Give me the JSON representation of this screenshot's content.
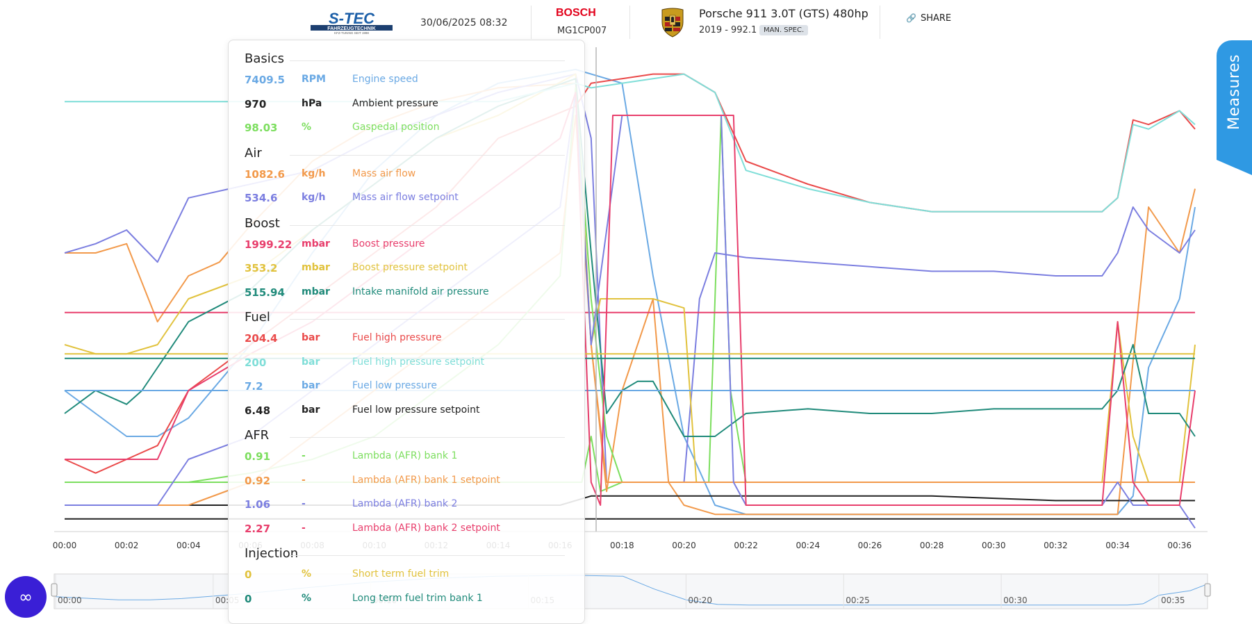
{
  "header": {
    "date_time": "30/06/2025 08:32",
    "ecu_brand": "BOSCH",
    "ecu_model": "MG1CP007",
    "vehicle_name": "Porsche 911 3.0T (GTS) 480hp",
    "vehicle_detail": "2019 - 992.1",
    "badge": "MAN. SPEC.",
    "share_label": "SHARE"
  },
  "logo": {
    "text": "S-TEC",
    "sub": "FAHRZEUGTECHNIK",
    "tagline": "KFZ-TUNING SEIT 1998"
  },
  "sidebar_tab": {
    "label": "Measures"
  },
  "fab_icon": "infinity-chat-icon",
  "colors": {
    "accent": "#2f99e3",
    "fab": "#3a1fd6",
    "bosch": "#e2001a"
  },
  "panel": {
    "sections": [
      {
        "title": "Basics",
        "items": [
          {
            "value": "7409.5",
            "unit": "RPM",
            "name": "Engine speed",
            "color": "#6aa9e4"
          },
          {
            "value": "970",
            "unit": "hPa",
            "name": "Ambient pressure",
            "color": "#222222"
          },
          {
            "value": "98.03",
            "unit": "%",
            "name": "Gaspedal position",
            "color": "#7cde5e"
          }
        ]
      },
      {
        "title": "Air",
        "items": [
          {
            "value": "1082.6",
            "unit": "kg/h",
            "name": "Mass air flow",
            "color": "#f2994a"
          },
          {
            "value": "534.6",
            "unit": "kg/h",
            "name": "Mass air flow setpoint",
            "color": "#7b7ee0"
          }
        ]
      },
      {
        "title": "Boost",
        "items": [
          {
            "value": "1999.22",
            "unit": "mbar",
            "name": "Boost pressure",
            "color": "#e83e6c"
          },
          {
            "value": "353.2",
            "unit": "mbar",
            "name": "Boost pressure setpoint",
            "color": "#e1c23d"
          },
          {
            "value": "515.94",
            "unit": "mbar",
            "name": "Intake manifold air pressure",
            "color": "#1f8a7a"
          }
        ]
      },
      {
        "title": "Fuel",
        "items": [
          {
            "value": "204.4",
            "unit": "bar",
            "name": "Fuel high pressure",
            "color": "#ea4a4a"
          },
          {
            "value": "200",
            "unit": "bar",
            "name": "Fuel high pressure setpoint",
            "color": "#7fded8"
          },
          {
            "value": "7.2",
            "unit": "bar",
            "name": "Fuel low pressure",
            "color": "#6aa9e4"
          },
          {
            "value": "6.48",
            "unit": "bar",
            "name": "Fuel low pressure setpoint",
            "color": "#222222"
          }
        ]
      },
      {
        "title": "AFR",
        "items": [
          {
            "value": "0.91",
            "unit": "-",
            "name": "Lambda (AFR) bank 1",
            "color": "#7cde5e"
          },
          {
            "value": "0.92",
            "unit": "-",
            "name": "Lambda (AFR) bank 1 setpoint",
            "color": "#f2994a"
          },
          {
            "value": "1.06",
            "unit": "-",
            "name": "Lambda (AFR) bank 2",
            "color": "#7b7ee0"
          },
          {
            "value": "2.27",
            "unit": "-",
            "name": "Lambda (AFR) bank 2 setpoint",
            "color": "#e83e6c"
          }
        ]
      },
      {
        "title": "Injection",
        "items": [
          {
            "value": "0",
            "unit": "%",
            "name": "Short term fuel trim",
            "color": "#e1c23d"
          },
          {
            "value": "0",
            "unit": "%",
            "name": "Long term fuel trim bank 1",
            "color": "#1f8a7a"
          }
        ]
      }
    ]
  },
  "chart_data": {
    "type": "line",
    "x_ticks": [
      "00:00",
      "00:02",
      "00:04",
      "00:06",
      "00:08",
      "00:10",
      "00:12",
      "00:14",
      "00:16",
      "00:18",
      "00:20",
      "00:22",
      "00:24",
      "00:26",
      "00:28",
      "00:30",
      "00:32",
      "00:34",
      "00:36"
    ],
    "x_range_seconds": [
      0,
      36.5
    ],
    "cursor_time_seconds": 17.1,
    "y_axis": "normalized per series (no y-axis labels shown)",
    "grid": false,
    "legend": "side panel (left)",
    "navigator": {
      "ticks": [
        "00:00",
        "00:05",
        "00:10",
        "00:15",
        "00:20",
        "00:25",
        "00:30",
        "00:35"
      ],
      "range_seconds": [
        0,
        36.5
      ]
    },
    "series": [
      {
        "name": "Engine speed",
        "color": "#6aa9e4",
        "x": [
          0,
          1,
          2,
          3,
          4,
          6,
          8,
          10,
          12,
          14,
          16.5,
          17,
          18,
          19,
          20,
          21,
          22,
          23,
          24,
          26,
          28,
          30,
          32,
          33.5,
          34,
          34.5,
          35,
          36,
          36.5
        ],
        "y": [
          0.3,
          0.25,
          0.2,
          0.2,
          0.24,
          0.4,
          0.6,
          0.78,
          0.9,
          0.97,
          1.0,
          0.99,
          0.97,
          0.55,
          0.2,
          0.05,
          0.03,
          0.03,
          0.03,
          0.03,
          0.03,
          0.03,
          0.03,
          0.03,
          0.03,
          0.07,
          0.35,
          0.5,
          0.7
        ]
      },
      {
        "name": "Ambient pressure",
        "color": "#222222",
        "x": [
          0,
          4,
          8,
          12,
          16,
          17,
          20,
          24,
          28,
          32,
          34,
          36,
          36.5
        ],
        "y": [
          0.02,
          0.02,
          0.02,
          0.02,
          0.02,
          0.02,
          0.02,
          0.02,
          0.02,
          0.02,
          0.02,
          0.02,
          0.02
        ]
      },
      {
        "name": "Gaspedal position",
        "color": "#7cde5e",
        "x": [
          0,
          4,
          8,
          12,
          16,
          16.7,
          17,
          17.3,
          18,
          19,
          20,
          20.8,
          21.2,
          21.5,
          22,
          24,
          28,
          32,
          34,
          36,
          36.5
        ],
        "y": [
          0.1,
          0.1,
          0.1,
          0.1,
          0.1,
          0.1,
          0.2,
          0.08,
          0.1,
          0.1,
          0.1,
          0.1,
          0.9,
          0.3,
          0.1,
          0.1,
          0.1,
          0.1,
          0.1,
          0.1,
          0.1
        ]
      },
      {
        "name": "Mass air flow",
        "color": "#f2994a",
        "x": [
          0,
          1,
          2,
          3,
          4,
          5,
          6,
          8,
          10,
          12,
          14,
          16.5,
          17,
          17.5,
          18,
          19,
          19.5,
          20,
          21,
          22,
          24,
          28,
          32,
          34,
          35,
          36,
          36.5
        ],
        "y": [
          0.6,
          0.6,
          0.62,
          0.45,
          0.55,
          0.58,
          0.66,
          0.8,
          0.88,
          0.93,
          0.96,
          0.97,
          0.4,
          0.08,
          0.3,
          0.5,
          0.1,
          0.05,
          0.03,
          0.03,
          0.03,
          0.03,
          0.03,
          0.03,
          0.7,
          0.6,
          0.74
        ]
      },
      {
        "name": "Mass air flow setpoint",
        "color": "#7b7ee0",
        "x": [
          0,
          1,
          2,
          3,
          4,
          6,
          8,
          10,
          12,
          14,
          16.5,
          17,
          17.5,
          18,
          19,
          20,
          20.5,
          21,
          22,
          24,
          26,
          28,
          30,
          32,
          33.5,
          34,
          34.5,
          35,
          36,
          36.5
        ],
        "y": [
          0.6,
          0.62,
          0.65,
          0.58,
          0.72,
          0.75,
          0.78,
          0.85,
          0.9,
          0.95,
          0.99,
          0.85,
          0.1,
          0.1,
          0.1,
          0.1,
          0.5,
          0.6,
          0.59,
          0.58,
          0.57,
          0.56,
          0.56,
          0.55,
          0.55,
          0.6,
          0.7,
          0.65,
          0.6,
          0.65
        ]
      },
      {
        "name": "Boost pressure",
        "color": "#e83e6c",
        "x": [
          0,
          4,
          8,
          12,
          16,
          17,
          20,
          24,
          28,
          32,
          34,
          36,
          36.5
        ],
        "y": [
          0.47,
          0.47,
          0.47,
          0.47,
          0.47,
          0.47,
          0.47,
          0.47,
          0.47,
          0.47,
          0.47,
          0.47,
          0.47
        ]
      },
      {
        "name": "Boost pressure setpoint",
        "color": "#e1c23d",
        "x": [
          0,
          1,
          2,
          3,
          4,
          6,
          8,
          10,
          12,
          14,
          16.5,
          17,
          17.3,
          18,
          19,
          20,
          20.4,
          20.6,
          21,
          22,
          24,
          28,
          32,
          33.5,
          34,
          34.5,
          35,
          36,
          36.5
        ],
        "y": [
          0.4,
          0.38,
          0.38,
          0.4,
          0.5,
          0.55,
          0.65,
          0.75,
          0.85,
          0.9,
          0.99,
          0.4,
          0.5,
          0.5,
          0.5,
          0.48,
          0.1,
          0.1,
          0.1,
          0.1,
          0.1,
          0.1,
          0.1,
          0.1,
          0.45,
          0.2,
          0.1,
          0.1,
          0.4
        ]
      },
      {
        "name": "Intake manifold air pressure",
        "color": "#1f8a7a",
        "x": [
          0,
          1,
          2,
          2.5,
          3,
          4,
          6,
          8,
          10,
          12,
          14,
          16.5,
          17,
          17.5,
          18,
          18.5,
          19,
          20,
          21,
          22,
          24,
          26,
          28,
          30,
          32,
          33.5,
          34,
          34.5,
          35,
          36,
          36.5
        ],
        "y": [
          0.25,
          0.3,
          0.27,
          0.3,
          0.35,
          0.45,
          0.52,
          0.65,
          0.75,
          0.85,
          0.92,
          0.98,
          0.6,
          0.25,
          0.3,
          0.32,
          0.32,
          0.2,
          0.2,
          0.25,
          0.26,
          0.25,
          0.25,
          0.26,
          0.26,
          0.26,
          0.3,
          0.4,
          0.25,
          0.25,
          0.2
        ]
      },
      {
        "name": "Fuel high pressure",
        "color": "#ea4a4a",
        "x": [
          0,
          1,
          2,
          3,
          4,
          6,
          8,
          10,
          12,
          14,
          16.5,
          17,
          18,
          19,
          20,
          21,
          22,
          24,
          26,
          28,
          30,
          32,
          33.5,
          34,
          34.5,
          35,
          36,
          36.5
        ],
        "y": [
          0.15,
          0.12,
          0.15,
          0.18,
          0.3,
          0.4,
          0.5,
          0.6,
          0.7,
          0.85,
          0.92,
          0.97,
          0.98,
          0.99,
          0.99,
          0.95,
          0.8,
          0.75,
          0.71,
          0.69,
          0.69,
          0.69,
          0.69,
          0.72,
          0.89,
          0.88,
          0.91,
          0.87
        ]
      },
      {
        "name": "Fuel high pressure setpoint",
        "color": "#7fded8",
        "x": [
          0,
          1,
          2,
          3,
          4,
          6,
          8,
          10,
          12,
          14,
          16.5,
          17,
          18,
          19,
          20,
          21,
          22,
          24,
          26,
          28,
          30,
          32,
          33.5,
          34,
          34.5,
          35,
          36,
          36.5
        ],
        "y": [
          0.93,
          0.93,
          0.93,
          0.93,
          0.93,
          0.93,
          0.93,
          0.93,
          0.93,
          0.93,
          0.97,
          0.96,
          0.97,
          0.98,
          0.99,
          0.95,
          0.78,
          0.74,
          0.71,
          0.69,
          0.69,
          0.69,
          0.69,
          0.72,
          0.88,
          0.87,
          0.91,
          0.88
        ]
      },
      {
        "name": "Fuel low pressure",
        "color": "#6aa9e4",
        "x": [
          0,
          4,
          8,
          12,
          16,
          17,
          20,
          24,
          28,
          32,
          34,
          36,
          36.5
        ],
        "y": [
          0.3,
          0.3,
          0.3,
          0.3,
          0.3,
          0.3,
          0.3,
          0.3,
          0.3,
          0.3,
          0.3,
          0.3,
          0.3
        ]
      },
      {
        "name": "Fuel low pressure setpoint",
        "color": "#222222",
        "x": [
          0,
          4,
          8,
          12,
          16,
          17,
          20,
          24,
          28,
          32,
          34,
          36,
          36.5
        ],
        "y": [
          0.05,
          0.05,
          0.05,
          0.05,
          0.05,
          0.07,
          0.07,
          0.07,
          0.07,
          0.06,
          0.06,
          0.06,
          0.06
        ]
      },
      {
        "name": "Lambda (AFR) bank 1",
        "color": "#7cde5e",
        "x": [
          0,
          2,
          4,
          6,
          8,
          10,
          12,
          14,
          16,
          16.5,
          17,
          17.5,
          18,
          19,
          20,
          20.6,
          21,
          22,
          24,
          28,
          32,
          34,
          36,
          36.5
        ],
        "y": [
          0.1,
          0.1,
          0.1,
          0.12,
          0.15,
          0.2,
          0.3,
          0.4,
          0.55,
          0.96,
          0.5,
          0.2,
          0.1,
          0.1,
          0.1,
          0.1,
          0.1,
          0.1,
          0.1,
          0.1,
          0.1,
          0.1,
          0.1,
          0.1
        ]
      },
      {
        "name": "Lambda (AFR) bank 1 setpoint",
        "color": "#f2994a",
        "x": [
          0,
          2,
          4,
          6,
          8,
          10,
          12,
          14,
          16,
          16.5,
          17,
          17.5,
          18,
          19,
          20,
          21,
          22,
          24,
          28,
          32,
          34,
          36,
          36.5
        ],
        "y": [
          0.05,
          0.05,
          0.05,
          0.1,
          0.2,
          0.3,
          0.4,
          0.5,
          0.6,
          0.9,
          0.4,
          0.1,
          0.1,
          0.1,
          0.1,
          0.1,
          0.1,
          0.1,
          0.1,
          0.1,
          0.1,
          0.1,
          0.1
        ]
      },
      {
        "name": "Lambda (AFR) bank 2",
        "color": "#7b7ee0",
        "x": [
          0,
          2,
          3,
          4,
          6,
          8,
          10,
          12,
          14,
          16,
          16.5,
          17,
          18,
          19,
          20,
          20.9,
          21.2,
          21.6,
          22,
          24,
          28,
          32,
          33.5,
          34,
          34.5,
          35,
          36,
          36.5
        ],
        "y": [
          0.05,
          0.05,
          0.05,
          0.15,
          0.2,
          0.3,
          0.4,
          0.5,
          0.6,
          0.7,
          0.95,
          0.4,
          0.9,
          0.9,
          0.9,
          0.9,
          0.9,
          0.1,
          0.05,
          0.05,
          0.05,
          0.05,
          0.05,
          0.1,
          0.05,
          0.05,
          0.05,
          0.0
        ]
      },
      {
        "name": "Lambda (AFR) bank 2 setpoint",
        "color": "#e83e6c",
        "x": [
          0,
          2,
          3,
          4,
          6,
          8,
          10,
          12,
          14,
          16,
          16.5,
          17,
          17.3,
          17.7,
          18,
          19,
          20,
          21,
          21.6,
          22,
          24,
          28,
          32,
          33.5,
          34,
          34.5,
          35,
          36,
          36.5
        ],
        "y": [
          0.15,
          0.15,
          0.15,
          0.3,
          0.38,
          0.45,
          0.55,
          0.65,
          0.75,
          0.85,
          0.95,
          0.1,
          0.05,
          0.9,
          0.9,
          0.9,
          0.9,
          0.9,
          0.9,
          0.05,
          0.05,
          0.05,
          0.05,
          0.05,
          0.45,
          0.1,
          0.05,
          0.05,
          0.3
        ]
      },
      {
        "name": "Short term fuel trim",
        "color": "#e1c23d",
        "x": [
          0,
          4,
          8,
          12,
          16,
          17,
          20,
          24,
          28,
          32,
          34,
          36,
          36.5
        ],
        "y": [
          0.38,
          0.38,
          0.38,
          0.38,
          0.38,
          0.38,
          0.38,
          0.38,
          0.38,
          0.38,
          0.38,
          0.38,
          0.38
        ]
      },
      {
        "name": "Long term fuel trim bank 1",
        "color": "#1f8a7a",
        "x": [
          0,
          4,
          8,
          12,
          16,
          17,
          20,
          24,
          28,
          32,
          34,
          36,
          36.5
        ],
        "y": [
          0.37,
          0.37,
          0.37,
          0.37,
          0.37,
          0.37,
          0.37,
          0.37,
          0.37,
          0.37,
          0.37,
          0.37,
          0.37
        ]
      }
    ]
  }
}
